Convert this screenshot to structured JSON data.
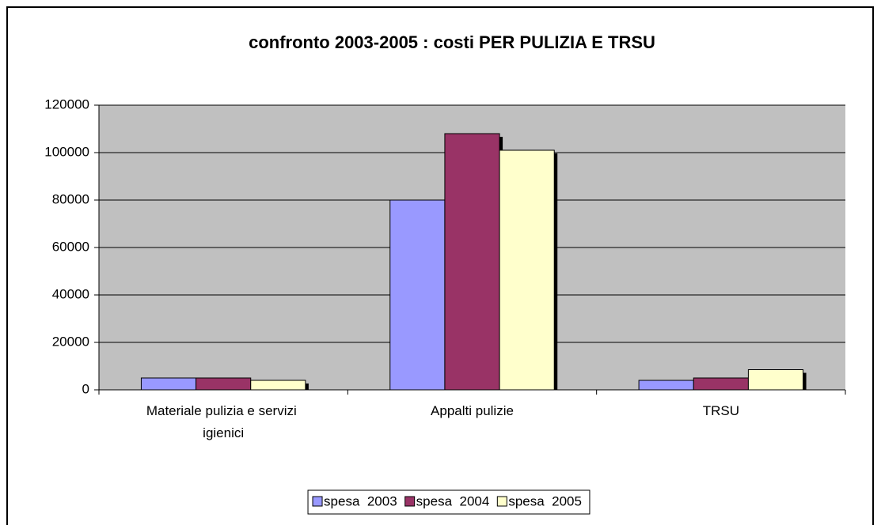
{
  "chart_data": {
    "type": "bar",
    "title": "confronto 2003-2005 : costi PER PULIZIA E TRSU",
    "categories": [
      "Materiale pulizia e servizi igienici",
      "Appalti pulizie",
      "TRSU"
    ],
    "series": [
      {
        "name": "spesa  2003",
        "color": "#9999ff",
        "values": [
          5000,
          80000,
          4000
        ]
      },
      {
        "name": "spesa  2004",
        "color": "#993366",
        "values": [
          5000,
          108000,
          5000
        ]
      },
      {
        "name": "spesa  2005",
        "color": "#ffffcc",
        "values": [
          4000,
          101000,
          8500
        ]
      }
    ],
    "ylim": [
      0,
      120000
    ],
    "yticks": [
      0,
      20000,
      40000,
      60000,
      80000,
      100000,
      120000
    ],
    "grid": true,
    "legend": "bottom"
  }
}
